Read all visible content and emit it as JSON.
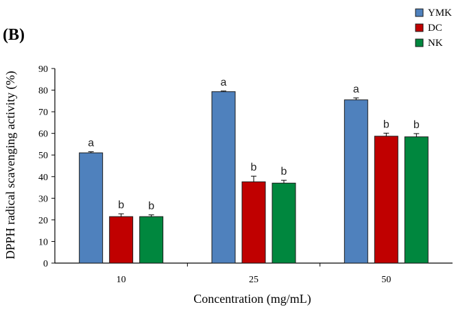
{
  "chart_data": {
    "panel_label": "(B)",
    "type": "bar",
    "categories": [
      "10",
      "25",
      "50"
    ],
    "series": [
      {
        "name": "YMK",
        "color": "#4f81bd",
        "values": [
          51.0,
          79.3,
          75.5
        ],
        "errors": [
          0.5,
          0.3,
          0.9
        ],
        "sig": [
          "a",
          "a",
          "a"
        ]
      },
      {
        "name": "DC",
        "color": "#c00000",
        "values": [
          21.5,
          37.6,
          58.7
        ],
        "errors": [
          1.3,
          2.6,
          1.4
        ],
        "sig": [
          "b",
          "b",
          "b"
        ]
      },
      {
        "name": "NK",
        "color": "#00873e",
        "values": [
          21.5,
          37.0,
          58.4
        ],
        "errors": [
          0.8,
          1.3,
          1.5
        ],
        "sig": [
          "b",
          "b",
          "b"
        ]
      }
    ],
    "xlabel": "Concentration (mg/mL)",
    "ylabel": "DPPH radical scavenging activity (%)",
    "ylim": [
      0,
      90
    ],
    "yticks": [
      0,
      10,
      20,
      30,
      40,
      50,
      60,
      70,
      80,
      90
    ],
    "grid": false,
    "legend_position": "top-right"
  }
}
